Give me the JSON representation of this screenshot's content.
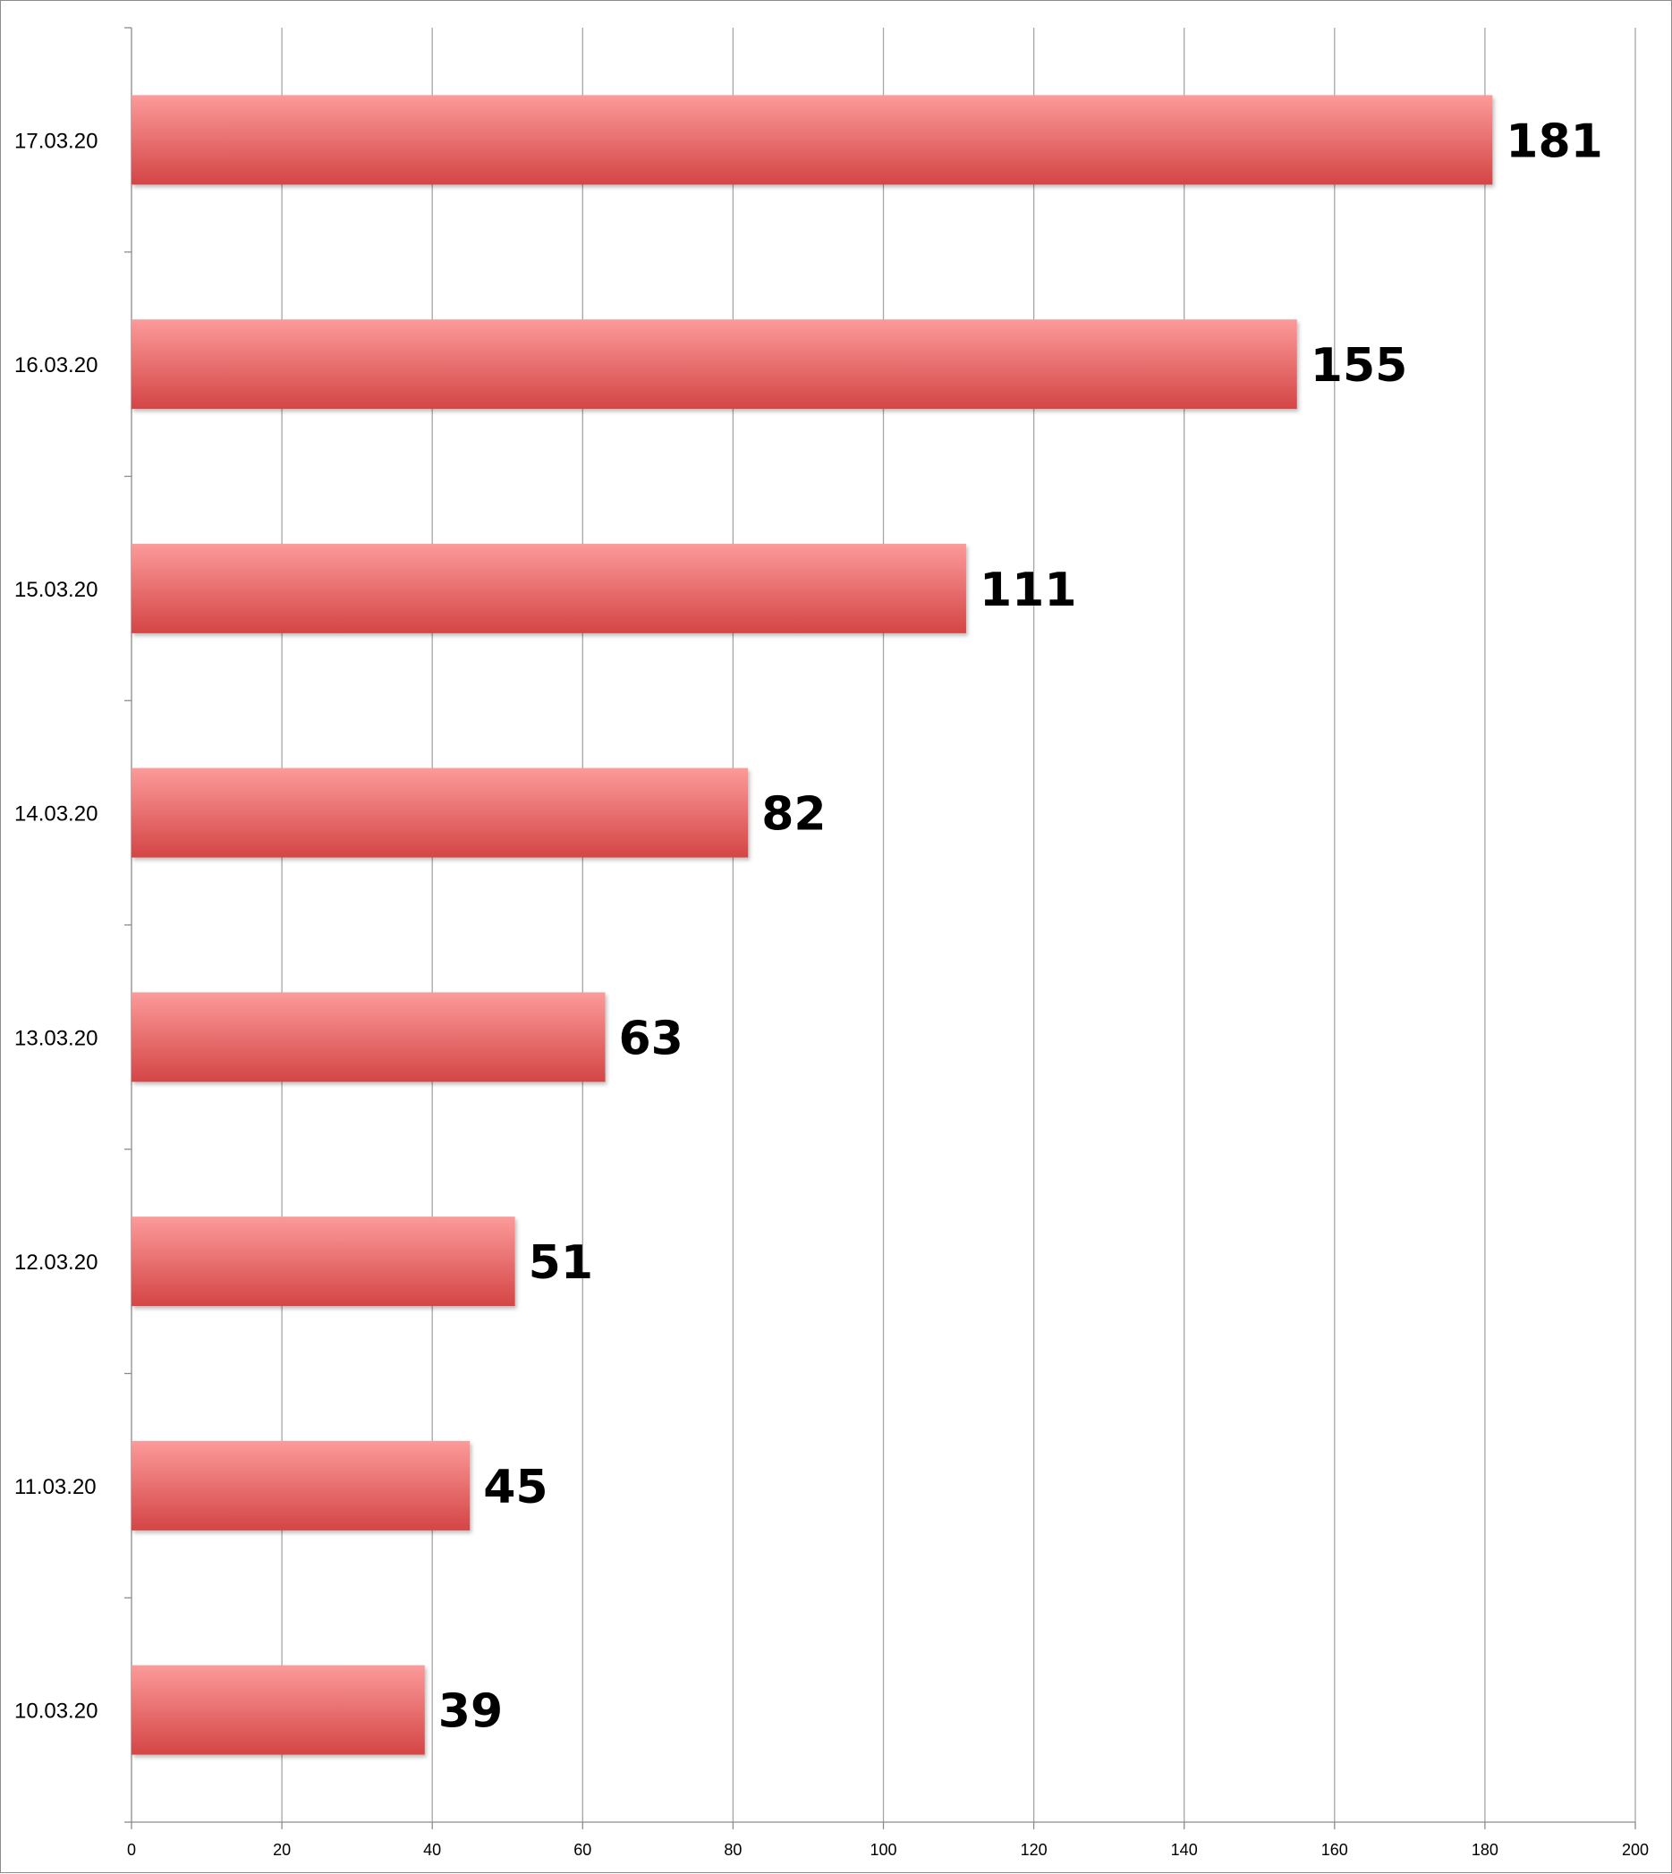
{
  "colors": {
    "bar_top": "#fc9a9a",
    "bar_bottom": "#d44545",
    "grid": "#a6a6a6",
    "axis": "#8c8c8c",
    "text": "#000000"
  },
  "chart_data": {
    "type": "bar",
    "orientation": "horizontal",
    "categories": [
      "10.03.20",
      "11.03.20",
      "12.03.20",
      "13.03.20",
      "14.03.20",
      "15.03.20",
      "16.03.20",
      "17.03.20"
    ],
    "values": [
      39,
      45,
      51,
      63,
      82,
      111,
      155,
      181
    ],
    "xlim": [
      0,
      200
    ],
    "xticks": [
      0,
      20,
      40,
      60,
      80,
      100,
      120,
      140,
      160,
      180,
      200
    ],
    "grid": "vertical",
    "data_labels": true,
    "title": "",
    "xlabel": "",
    "ylabel": ""
  }
}
